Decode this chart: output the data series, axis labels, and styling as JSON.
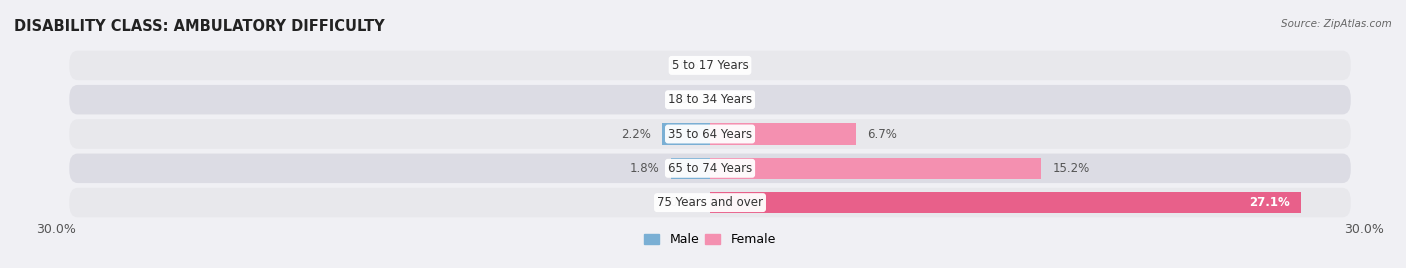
{
  "title": "DISABILITY CLASS: AMBULATORY DIFFICULTY",
  "source": "Source: ZipAtlas.com",
  "categories": [
    "5 to 17 Years",
    "18 to 34 Years",
    "35 to 64 Years",
    "65 to 74 Years",
    "75 Years and over"
  ],
  "male_values": [
    0.0,
    0.0,
    2.2,
    1.8,
    0.0
  ],
  "female_values": [
    0.0,
    0.0,
    6.7,
    15.2,
    27.1
  ],
  "x_max": 30.0,
  "male_color": "#7aafd4",
  "female_color": "#f490b0",
  "female_color_strong": "#e8608a",
  "row_bg_color": "#e8e8ec",
  "row_bg_color2": "#dcdce4",
  "fig_bg_color": "#f0f0f4",
  "label_fontsize": 8.5,
  "title_fontsize": 10.5,
  "axis_label_fontsize": 9,
  "bar_height": 0.62,
  "legend_male_color": "#7aafd4",
  "legend_female_color": "#f490b0"
}
